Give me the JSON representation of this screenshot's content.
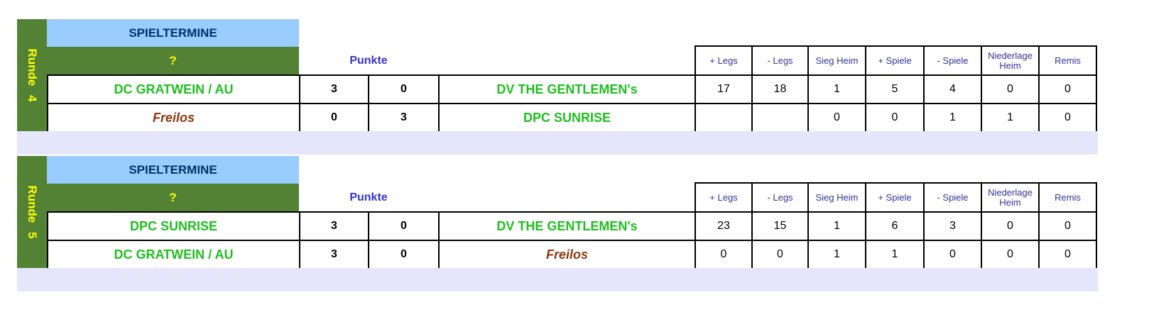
{
  "rounds": [
    {
      "label": "Runde 4",
      "header": "SPIELTERMINE",
      "date": "?",
      "points_label": "Punkte",
      "stat_headers": [
        "+ Legs",
        "- Legs",
        "Sieg Heim",
        "+ Spiele",
        "- Spiele",
        "Niederlage Heim",
        "Remis"
      ],
      "matches": [
        {
          "home": "DC GRATWEIN / AU",
          "home_score": "3",
          "away_score": "0",
          "away": "DV THE GENTLEMEN's",
          "stats": [
            "17",
            "18",
            "1",
            "5",
            "4",
            "0",
            "0"
          ]
        },
        {
          "home": "Freilos",
          "home_score": "0",
          "away_score": "3",
          "away": "DPC SUNRISE",
          "stats": [
            "",
            "",
            "0",
            "0",
            "1",
            "1",
            "0"
          ]
        }
      ]
    },
    {
      "label": "Runde 5",
      "header": "SPIELTERMINE",
      "date": "?",
      "points_label": "Punkte",
      "stat_headers": [
        "+ Legs",
        "- Legs",
        "Sieg Heim",
        "+ Spiele",
        "- Spiele",
        "Niederlage Heim",
        "Remis"
      ],
      "matches": [
        {
          "home": "DPC SUNRISE",
          "home_score": "3",
          "away_score": "0",
          "away": "DV THE GENTLEMEN's",
          "stats": [
            "23",
            "15",
            "1",
            "6",
            "3",
            "0",
            "0"
          ]
        },
        {
          "home": "DC GRATWEIN / AU",
          "home_score": "3",
          "away_score": "0",
          "away": "Freilos",
          "stats": [
            "0",
            "0",
            "1",
            "1",
            "0",
            "0",
            "0"
          ]
        }
      ]
    }
  ]
}
